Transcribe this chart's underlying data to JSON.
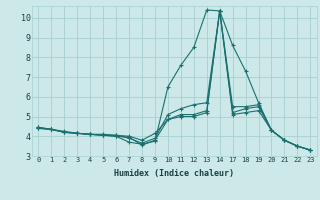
{
  "xlabel": "Humidex (Indice chaleur)",
  "background_color": "#cce8e8",
  "grid_color": "#a8d0d0",
  "line_color": "#1a7070",
  "x_vals": [
    0,
    1,
    2,
    3,
    4,
    5,
    6,
    7,
    8,
    9,
    10,
    11,
    12,
    13,
    14,
    17,
    18,
    19,
    20,
    21,
    22,
    23
  ],
  "x_tick_labels": [
    "0",
    "1",
    "2",
    "3",
    "4",
    "5",
    "6",
    "7",
    "8",
    "9",
    "10",
    "11",
    "12",
    "13",
    "14",
    "17",
    "18",
    "19",
    "20",
    "21",
    "22",
    "23"
  ],
  "ylim": [
    3,
    10.6
  ],
  "y_ticks": [
    3,
    4,
    5,
    6,
    7,
    8,
    9,
    10
  ],
  "y_tick_labels": [
    "3",
    "4",
    "5",
    "6",
    "7",
    "8",
    "9",
    "10"
  ],
  "line_main_y": [
    4.45,
    4.35,
    4.2,
    4.15,
    4.1,
    4.05,
    4.0,
    3.7,
    3.6,
    3.75,
    6.5,
    7.6,
    8.5,
    10.4,
    10.35,
    8.6,
    7.3,
    5.7,
    4.3,
    3.8,
    3.5,
    3.3
  ],
  "line_upper_y": [
    4.45,
    4.35,
    4.2,
    4.15,
    4.1,
    4.05,
    4.05,
    3.9,
    3.65,
    3.9,
    5.1,
    5.4,
    5.6,
    5.7,
    10.35,
    5.5,
    5.5,
    5.6,
    4.3,
    3.8,
    3.5,
    3.3
  ],
  "line_lower_y": [
    4.4,
    4.35,
    4.2,
    4.15,
    4.1,
    4.05,
    4.0,
    3.95,
    3.55,
    3.8,
    4.85,
    5.0,
    5.0,
    5.2,
    10.35,
    5.2,
    5.4,
    5.5,
    4.3,
    3.8,
    3.5,
    3.3
  ],
  "line_flat_y": [
    4.4,
    4.35,
    4.25,
    4.15,
    4.1,
    4.1,
    4.05,
    4.0,
    3.8,
    4.15,
    4.85,
    5.1,
    5.1,
    5.3,
    10.35,
    5.1,
    5.2,
    5.3,
    4.3,
    3.8,
    3.5,
    3.3
  ]
}
